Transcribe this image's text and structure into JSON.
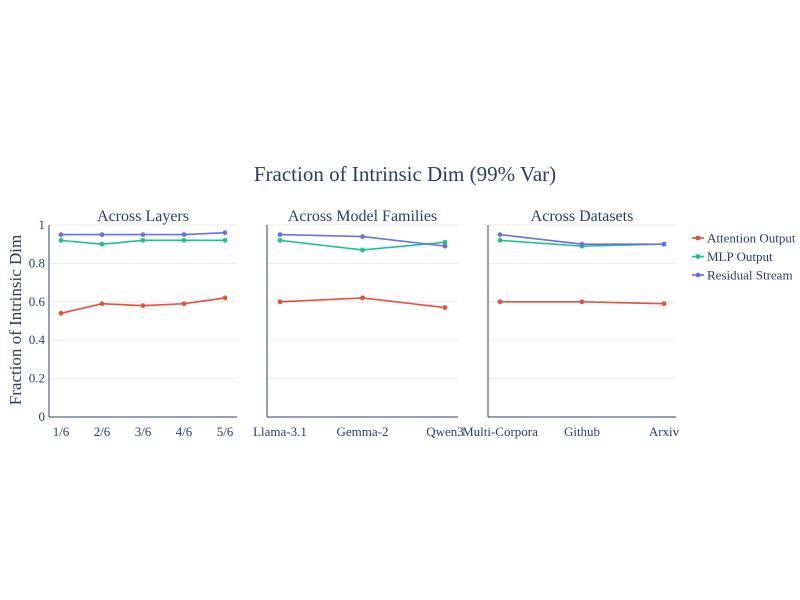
{
  "figure": {
    "title": "Fraction of Intrinsic Dim (99% Var)",
    "ylabel": "Fraction of Intrinsic Dim"
  },
  "legend": [
    {
      "name": "Attention Output",
      "color": "#e8503a"
    },
    {
      "name": "MLP Output",
      "color": "#1fbf8f"
    },
    {
      "name": "Residual Stream",
      "color": "#6a6ee8"
    }
  ],
  "chart_data": [
    {
      "type": "line",
      "title": "Across Layers",
      "categories": [
        "1/6",
        "2/6",
        "3/6",
        "4/6",
        "5/6"
      ],
      "ylim": [
        0,
        1
      ],
      "yticks": [
        "0",
        "0.2",
        "0.4",
        "0.6",
        "0.8",
        "1"
      ],
      "grid": true,
      "legend_position": "right",
      "series": [
        {
          "name": "Attention Output",
          "values": [
            0.54,
            0.59,
            0.58,
            0.59,
            0.62
          ]
        },
        {
          "name": "MLP Output",
          "values": [
            0.92,
            0.9,
            0.92,
            0.92,
            0.92
          ]
        },
        {
          "name": "Residual Stream",
          "values": [
            0.95,
            0.95,
            0.95,
            0.95,
            0.96
          ]
        }
      ]
    },
    {
      "type": "line",
      "title": "Across Model Families",
      "categories": [
        "Llama-3.1",
        "Gemma-2",
        "Qwen3"
      ],
      "ylim": [
        0,
        1
      ],
      "grid": true,
      "series": [
        {
          "name": "Attention Output",
          "values": [
            0.6,
            0.62,
            0.57
          ]
        },
        {
          "name": "MLP Output",
          "values": [
            0.92,
            0.87,
            0.91
          ]
        },
        {
          "name": "Residual Stream",
          "values": [
            0.95,
            0.94,
            0.89
          ]
        }
      ]
    },
    {
      "type": "line",
      "title": "Across Datasets",
      "categories": [
        "Multi-Corpora",
        "Github",
        "Arxiv"
      ],
      "ylim": [
        0,
        1
      ],
      "grid": true,
      "series": [
        {
          "name": "Attention Output",
          "values": [
            0.6,
            0.6,
            0.59
          ]
        },
        {
          "name": "MLP Output",
          "values": [
            0.92,
            0.89,
            0.9
          ]
        },
        {
          "name": "Residual Stream",
          "values": [
            0.95,
            0.9,
            0.9
          ]
        }
      ]
    }
  ]
}
